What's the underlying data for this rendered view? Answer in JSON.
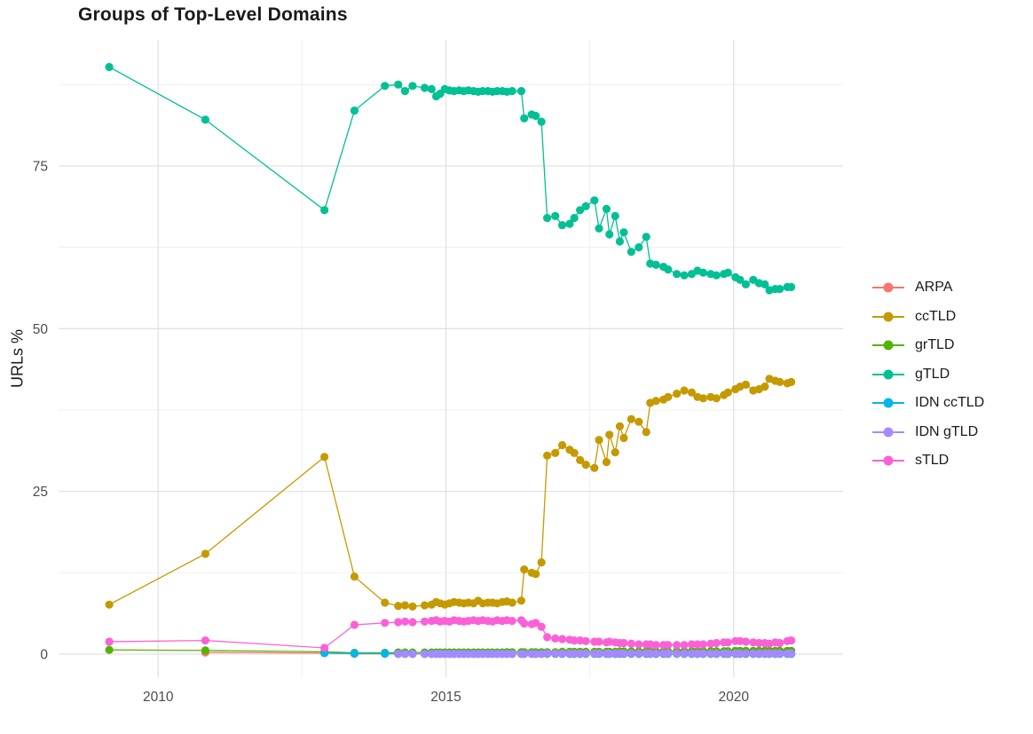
{
  "chart_data": {
    "type": "line",
    "title": "Groups of Top-Level Domains",
    "xlabel": "",
    "ylabel": "URLs %",
    "grid": true,
    "legend_position": "right",
    "x_ticks": [
      2010,
      2015,
      2020
    ],
    "y_ticks": [
      0,
      25,
      50,
      75
    ],
    "x_minor": [
      2012.5,
      2017.5
    ],
    "y_minor": [
      12.5,
      37.5,
      62.5,
      87.5
    ],
    "xlim": [
      2008.27,
      2021.9
    ],
    "ylim": [
      -3.55,
      94.36
    ],
    "x": [
      2009.15,
      2010.82,
      2012.89,
      2013.41,
      2013.94,
      2014.17,
      2014.29,
      2014.42,
      2014.63,
      2014.75,
      2014.83,
      2014.9,
      2014.98,
      2015.06,
      2015.14,
      2015.23,
      2015.31,
      2015.39,
      2015.48,
      2015.56,
      2015.64,
      2015.73,
      2015.81,
      2015.89,
      2015.98,
      2016.06,
      2016.15,
      2016.31,
      2016.36,
      2016.49,
      2016.56,
      2016.66,
      2016.76,
      2016.9,
      2017.02,
      2017.15,
      2017.23,
      2017.33,
      2017.43,
      2017.58,
      2017.66,
      2017.79,
      2017.84,
      2017.94,
      2018.02,
      2018.09,
      2018.22,
      2018.35,
      2018.48,
      2018.55,
      2018.65,
      2018.78,
      2018.86,
      2019.01,
      2019.14,
      2019.27,
      2019.37,
      2019.47,
      2019.6,
      2019.7,
      2019.83,
      2019.9,
      2020.03,
      2020.11,
      2020.21,
      2020.34,
      2020.44,
      2020.54,
      2020.62,
      2020.72,
      2020.8,
      2020.93,
      2021.0
    ],
    "series": [
      {
        "name": "ARPA",
        "color": "#F8766D",
        "values": [
          null,
          0.25,
          0.15,
          0.05,
          0.05,
          0.03,
          0.03,
          0.03,
          0.03,
          0.03,
          0.03,
          0.03,
          0.03,
          0.03,
          0.03,
          0.03,
          0.03,
          0.03,
          0.03,
          0.03,
          0.03,
          0.03,
          0.03,
          0.03,
          0.03,
          0.03,
          0.03,
          0.03,
          0.03,
          0.03,
          0.03,
          0.03,
          0.03,
          0.03,
          0.03,
          0.03,
          0.03,
          0.03,
          0.03,
          0.03,
          0.03,
          0.03,
          0.03,
          0.03,
          0.03,
          0.03,
          0.03,
          0.03,
          0.03,
          0.03,
          0.03,
          0.03,
          0.03,
          0.03,
          0.03,
          0.03,
          0.03,
          0.03,
          0.03,
          0.03,
          0.03,
          0.03,
          0.03,
          0.03,
          0.03,
          0.03,
          0.03,
          0.03,
          0.03,
          0.03,
          0.03,
          0.03,
          0.03
        ]
      },
      {
        "name": "ccTLD",
        "color": "#C49A00",
        "values": [
          7.6,
          15.4,
          30.3,
          11.9,
          7.9,
          7.4,
          7.5,
          7.3,
          7.5,
          7.6,
          8.0,
          7.8,
          7.6,
          7.8,
          8.0,
          7.9,
          7.8,
          7.9,
          7.8,
          8.2,
          7.8,
          7.9,
          7.9,
          7.8,
          8.0,
          8.1,
          7.9,
          8.2,
          13.0,
          12.5,
          12.3,
          14.1,
          30.5,
          30.9,
          32.1,
          31.4,
          30.9,
          29.8,
          29.1,
          28.6,
          32.9,
          29.5,
          33.7,
          31.0,
          35.0,
          33.2,
          36.1,
          35.7,
          34.1,
          38.6,
          38.9,
          39.1,
          39.5,
          40.0,
          40.5,
          40.2,
          39.5,
          39.3,
          39.5,
          39.3,
          39.8,
          40.2,
          40.7,
          41.1,
          41.4,
          40.5,
          40.7,
          41.1,
          42.3,
          42.0,
          41.8,
          41.6,
          41.8
        ]
      },
      {
        "name": "grTLD",
        "color": "#53B400",
        "values": [
          0.65,
          0.55,
          0.35,
          0.2,
          0.2,
          0.25,
          0.25,
          0.25,
          0.25,
          0.25,
          0.25,
          0.25,
          0.25,
          0.25,
          0.25,
          0.25,
          0.25,
          0.25,
          0.25,
          0.25,
          0.25,
          0.25,
          0.25,
          0.25,
          0.25,
          0.3,
          0.3,
          0.3,
          0.3,
          0.3,
          0.3,
          0.3,
          0.3,
          0.3,
          0.35,
          0.35,
          0.35,
          0.35,
          0.35,
          0.35,
          0.35,
          0.35,
          0.35,
          0.35,
          0.4,
          0.4,
          0.4,
          0.4,
          0.4,
          0.4,
          0.4,
          0.4,
          0.4,
          0.45,
          0.45,
          0.45,
          0.45,
          0.45,
          0.45,
          0.45,
          0.45,
          0.45,
          0.5,
          0.5,
          0.5,
          0.5,
          0.5,
          0.5,
          0.5,
          0.5,
          0.5,
          0.5,
          0.5
        ]
      },
      {
        "name": "gTLD",
        "color": "#00C094",
        "values": [
          90.2,
          82.1,
          68.2,
          83.5,
          87.3,
          87.5,
          86.5,
          87.3,
          87.0,
          86.8,
          85.7,
          86.1,
          86.8,
          86.6,
          86.5,
          86.6,
          86.5,
          86.6,
          86.5,
          86.4,
          86.5,
          86.5,
          86.4,
          86.5,
          86.5,
          86.4,
          86.5,
          86.5,
          82.3,
          82.9,
          82.7,
          81.8,
          67.0,
          67.3,
          65.9,
          66.1,
          67.0,
          68.2,
          68.8,
          69.7,
          65.4,
          68.4,
          64.5,
          67.3,
          63.4,
          64.8,
          61.8,
          62.5,
          64.1,
          60.0,
          59.8,
          59.5,
          59.1,
          58.4,
          58.2,
          58.4,
          58.9,
          58.6,
          58.4,
          58.2,
          58.4,
          58.6,
          57.9,
          57.5,
          56.8,
          57.5,
          57.0,
          56.8,
          55.9,
          56.1,
          56.1,
          56.4,
          56.4
        ]
      },
      {
        "name": "IDN ccTLD",
        "color": "#00B6EB",
        "values": [
          null,
          null,
          0.15,
          0.1,
          0.08,
          0.05,
          0.05,
          0.05,
          0.05,
          0.05,
          0.05,
          0.05,
          0.05,
          0.05,
          0.05,
          0.05,
          0.05,
          0.05,
          0.05,
          0.05,
          0.05,
          0.05,
          0.05,
          0.05,
          0.05,
          0.05,
          0.05,
          0.05,
          0.05,
          0.05,
          0.05,
          0.05,
          0.05,
          0.05,
          0.05,
          0.05,
          0.05,
          0.05,
          0.05,
          0.05,
          0.05,
          0.05,
          0.05,
          0.05,
          0.05,
          0.05,
          0.05,
          0.05,
          0.05,
          0.05,
          0.05,
          0.05,
          0.05,
          0.05,
          0.05,
          0.05,
          0.05,
          0.05,
          0.05,
          0.05,
          0.05,
          0.05,
          0.05,
          0.05,
          0.05,
          0.05,
          0.05,
          0.05,
          0.05,
          0.05,
          0.05,
          0.05,
          0.05
        ]
      },
      {
        "name": "IDN gTLD",
        "color": "#A58AFF",
        "values": [
          null,
          null,
          null,
          null,
          null,
          0.02,
          0.02,
          0.02,
          0.02,
          0.02,
          0.02,
          0.02,
          0.02,
          0.02,
          0.02,
          0.02,
          0.02,
          0.02,
          0.02,
          0.02,
          0.02,
          0.02,
          0.02,
          0.02,
          0.02,
          0.02,
          0.02,
          0.02,
          0.02,
          0.02,
          0.02,
          0.02,
          0.1,
          0.1,
          0.1,
          0.1,
          0.1,
          0.1,
          0.1,
          0.1,
          0.1,
          0.1,
          0.1,
          0.1,
          0.1,
          0.1,
          0.1,
          0.1,
          0.1,
          0.1,
          0.1,
          0.1,
          0.1,
          0.1,
          0.1,
          0.1,
          0.1,
          0.1,
          0.1,
          0.1,
          0.1,
          0.1,
          0.1,
          0.1,
          0.1,
          0.1,
          0.1,
          0.1,
          0.1,
          0.1,
          0.1,
          0.1,
          0.1
        ]
      },
      {
        "name": "sTLD",
        "color": "#FB61D7",
        "values": [
          1.9,
          2.1,
          0.95,
          4.5,
          4.8,
          4.9,
          5.0,
          4.9,
          5.0,
          5.1,
          5.2,
          5.0,
          5.1,
          5.0,
          5.2,
          5.1,
          5.0,
          5.1,
          5.2,
          5.1,
          5.2,
          5.1,
          5.0,
          5.2,
          5.1,
          5.2,
          5.1,
          5.2,
          4.7,
          4.6,
          4.8,
          4.2,
          2.6,
          2.4,
          2.3,
          2.2,
          2.1,
          2.1,
          2.0,
          1.9,
          1.9,
          1.8,
          1.9,
          1.8,
          1.7,
          1.7,
          1.6,
          1.5,
          1.5,
          1.5,
          1.4,
          1.4,
          1.4,
          1.4,
          1.4,
          1.5,
          1.5,
          1.5,
          1.6,
          1.7,
          1.8,
          1.8,
          2.0,
          2.0,
          1.9,
          1.8,
          1.7,
          1.7,
          1.6,
          1.8,
          1.7,
          2.0,
          2.1
        ]
      }
    ]
  },
  "style": {
    "grid_major_color": "#E2E2E2",
    "grid_minor_color": "#EFEFEF",
    "tick_label_color": "#4D4D4D",
    "text_color": "#1A1A1A",
    "background": "#FFFFFF"
  }
}
